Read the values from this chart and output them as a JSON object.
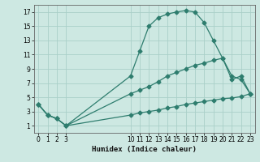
{
  "xlabel": "Humidex (Indice chaleur)",
  "bg_color": "#cde8e2",
  "grid_color": "#aacfc8",
  "line_color": "#2e7d6e",
  "xlim": [
    -0.5,
    23.5
  ],
  "ylim": [
    0.0,
    18.0
  ],
  "xticks": [
    0,
    1,
    2,
    3,
    10,
    11,
    12,
    13,
    14,
    15,
    16,
    17,
    18,
    19,
    20,
    21,
    22,
    23
  ],
  "yticks": [
    1,
    3,
    5,
    7,
    9,
    11,
    13,
    15,
    17
  ],
  "line1_x": [
    0,
    1,
    2,
    3,
    10,
    11,
    12,
    13,
    14,
    15,
    16,
    17,
    18,
    19,
    20,
    21,
    22,
    23
  ],
  "line1_y": [
    4.0,
    2.5,
    2.0,
    1.0,
    8.0,
    11.5,
    15.0,
    16.2,
    16.7,
    17.0,
    17.2,
    17.0,
    15.5,
    13.0,
    10.5,
    8.0,
    7.5,
    5.5
  ],
  "line2_x": [
    0,
    1,
    2,
    3,
    10,
    11,
    12,
    13,
    14,
    15,
    16,
    17,
    18,
    19,
    20,
    21,
    22,
    23
  ],
  "line2_y": [
    4.0,
    2.5,
    2.0,
    1.0,
    5.5,
    6.0,
    6.5,
    7.2,
    8.0,
    8.5,
    9.0,
    9.5,
    9.8,
    10.2,
    10.5,
    7.5,
    8.0,
    5.5
  ],
  "line3_x": [
    0,
    1,
    2,
    3,
    10,
    11,
    12,
    13,
    14,
    15,
    16,
    17,
    18,
    19,
    20,
    21,
    22,
    23
  ],
  "line3_y": [
    4.0,
    2.5,
    2.0,
    1.0,
    2.5,
    2.8,
    3.0,
    3.2,
    3.5,
    3.7,
    4.0,
    4.2,
    4.4,
    4.6,
    4.8,
    4.9,
    5.1,
    5.5
  ]
}
